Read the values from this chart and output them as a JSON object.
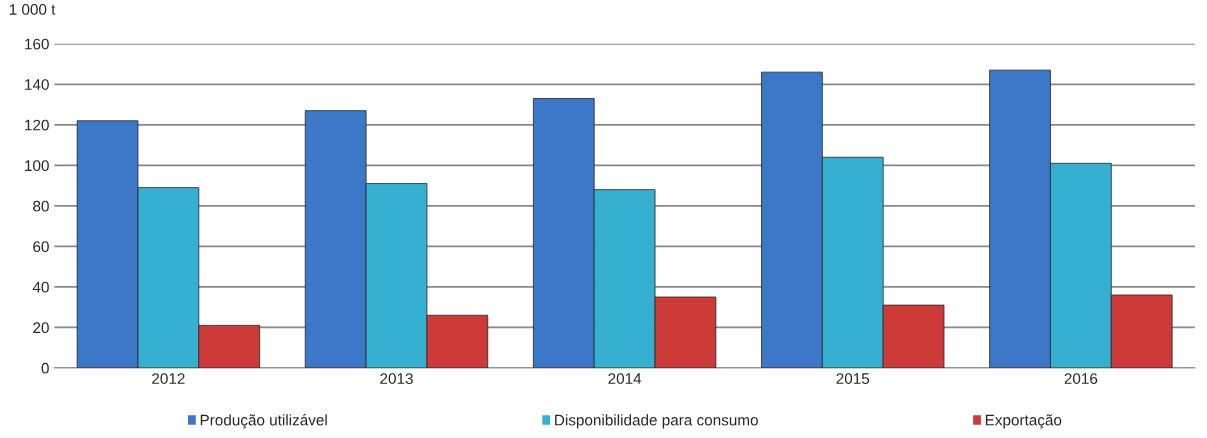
{
  "chart_data": {
    "type": "bar",
    "ylabel": "1 000 t",
    "categories": [
      "2012",
      "2013",
      "2014",
      "2015",
      "2016"
    ],
    "series": [
      {
        "name": "Produção utilizável",
        "color": "#3d78c8",
        "values": [
          122,
          127,
          133,
          146,
          147
        ]
      },
      {
        "name": "Disponibilidade para consumo",
        "color": "#35b0d0",
        "values": [
          89,
          91,
          88,
          104,
          101
        ]
      },
      {
        "name": "Exportação",
        "color": "#cc3b38",
        "values": [
          21,
          26,
          35,
          31,
          36
        ]
      }
    ],
    "ylim": [
      0,
      160
    ],
    "yticks": [
      0,
      20,
      40,
      60,
      80,
      100,
      120,
      140,
      160
    ],
    "grid": "y",
    "legend": "bottom"
  }
}
